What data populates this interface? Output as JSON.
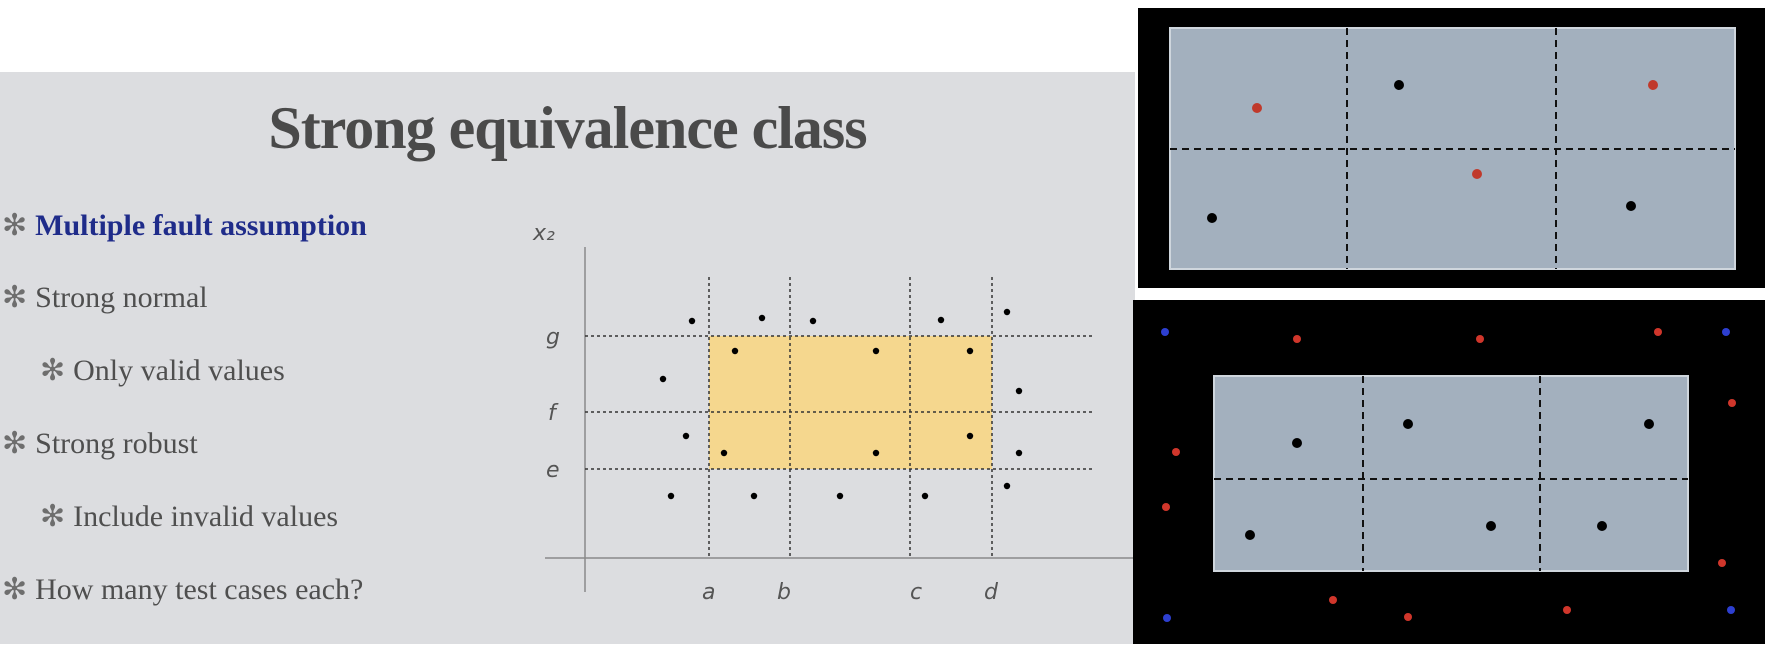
{
  "slide": {
    "title": "Strong equivalence class",
    "bullets": [
      {
        "text": "Multiple fault assumption",
        "level": 1,
        "highlight": true
      },
      {
        "text": "Strong normal",
        "level": 1,
        "highlight": false
      },
      {
        "text": "Only valid values",
        "level": 2,
        "highlight": false
      },
      {
        "text": "Strong robust",
        "level": 1,
        "highlight": false
      },
      {
        "text": "Include invalid values",
        "level": 2,
        "highlight": false
      },
      {
        "text": "How many test cases each?",
        "level": 1,
        "highlight": false
      }
    ],
    "bullet_glyph": "✻"
  },
  "diagram": {
    "y_axis_label": "x₂",
    "y_labels": [
      "g",
      "f",
      "e"
    ],
    "x_labels": [
      "a",
      "b",
      "c",
      "d"
    ],
    "valid_region_color": "#f5d78e"
  },
  "panel_top": {
    "region_color": "#a3b0be",
    "point_colors": {
      "valid": "#000000",
      "invalid": "#c0392b"
    }
  },
  "panel_bottom": {
    "region_color": "#a3b0be",
    "point_colors": {
      "valid": "#000000",
      "invalid": "#d0362b",
      "corner": "#2d3fd0"
    }
  }
}
